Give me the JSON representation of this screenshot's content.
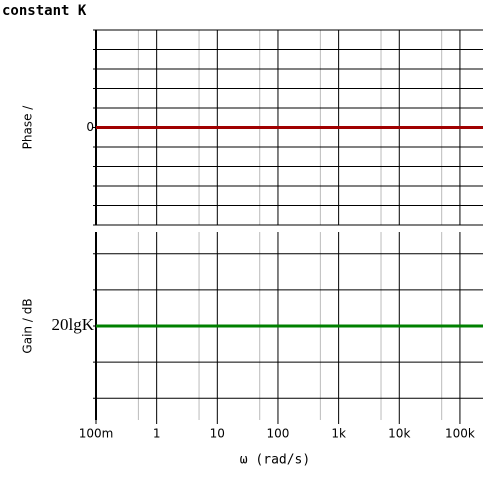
{
  "chart_data": [
    {
      "type": "line",
      "title": "constant K",
      "ylabel": "Phase /",
      "xlog": true,
      "xlim": [
        0.1,
        240000
      ],
      "xgrid": [
        0.1,
        1,
        10,
        100,
        1000,
        10000,
        100000
      ],
      "xminor": [
        0.5,
        5,
        50,
        500,
        5000,
        50000
      ],
      "ylim": [
        -5,
        5
      ],
      "yticks": [
        0
      ],
      "ygrid": [
        -5,
        -4,
        -3,
        -2,
        -1,
        0,
        1,
        2,
        3,
        4,
        5
      ],
      "series": [
        {
          "color": "#a00000",
          "x": [
            0.1,
            240000
          ],
          "values": [
            0,
            0
          ]
        }
      ]
    },
    {
      "type": "line",
      "ylabel": "Gain / dB",
      "xlabel": "ω (rad/s)",
      "xlog": true,
      "xlim": [
        0.1,
        240000
      ],
      "xticks": [
        {
          "value": 0.1,
          "label": "100m"
        },
        1,
        10,
        100,
        {
          "value": 1000,
          "label": "1k"
        },
        {
          "value": 10000,
          "label": "10k"
        },
        {
          "value": 100000,
          "label": "100k"
        }
      ],
      "xminor": [
        0.5,
        5,
        50,
        500,
        5000,
        50000
      ],
      "ylim": [
        -2.6,
        2.6
      ],
      "yticks": [
        {
          "value": 0,
          "label": "20lgK"
        }
      ],
      "ygrid": [
        -2,
        -1,
        0,
        1,
        2
      ],
      "series": [
        {
          "color": "#008000",
          "x": [
            0.1,
            240000
          ],
          "values": [
            0,
            0
          ]
        }
      ]
    }
  ]
}
